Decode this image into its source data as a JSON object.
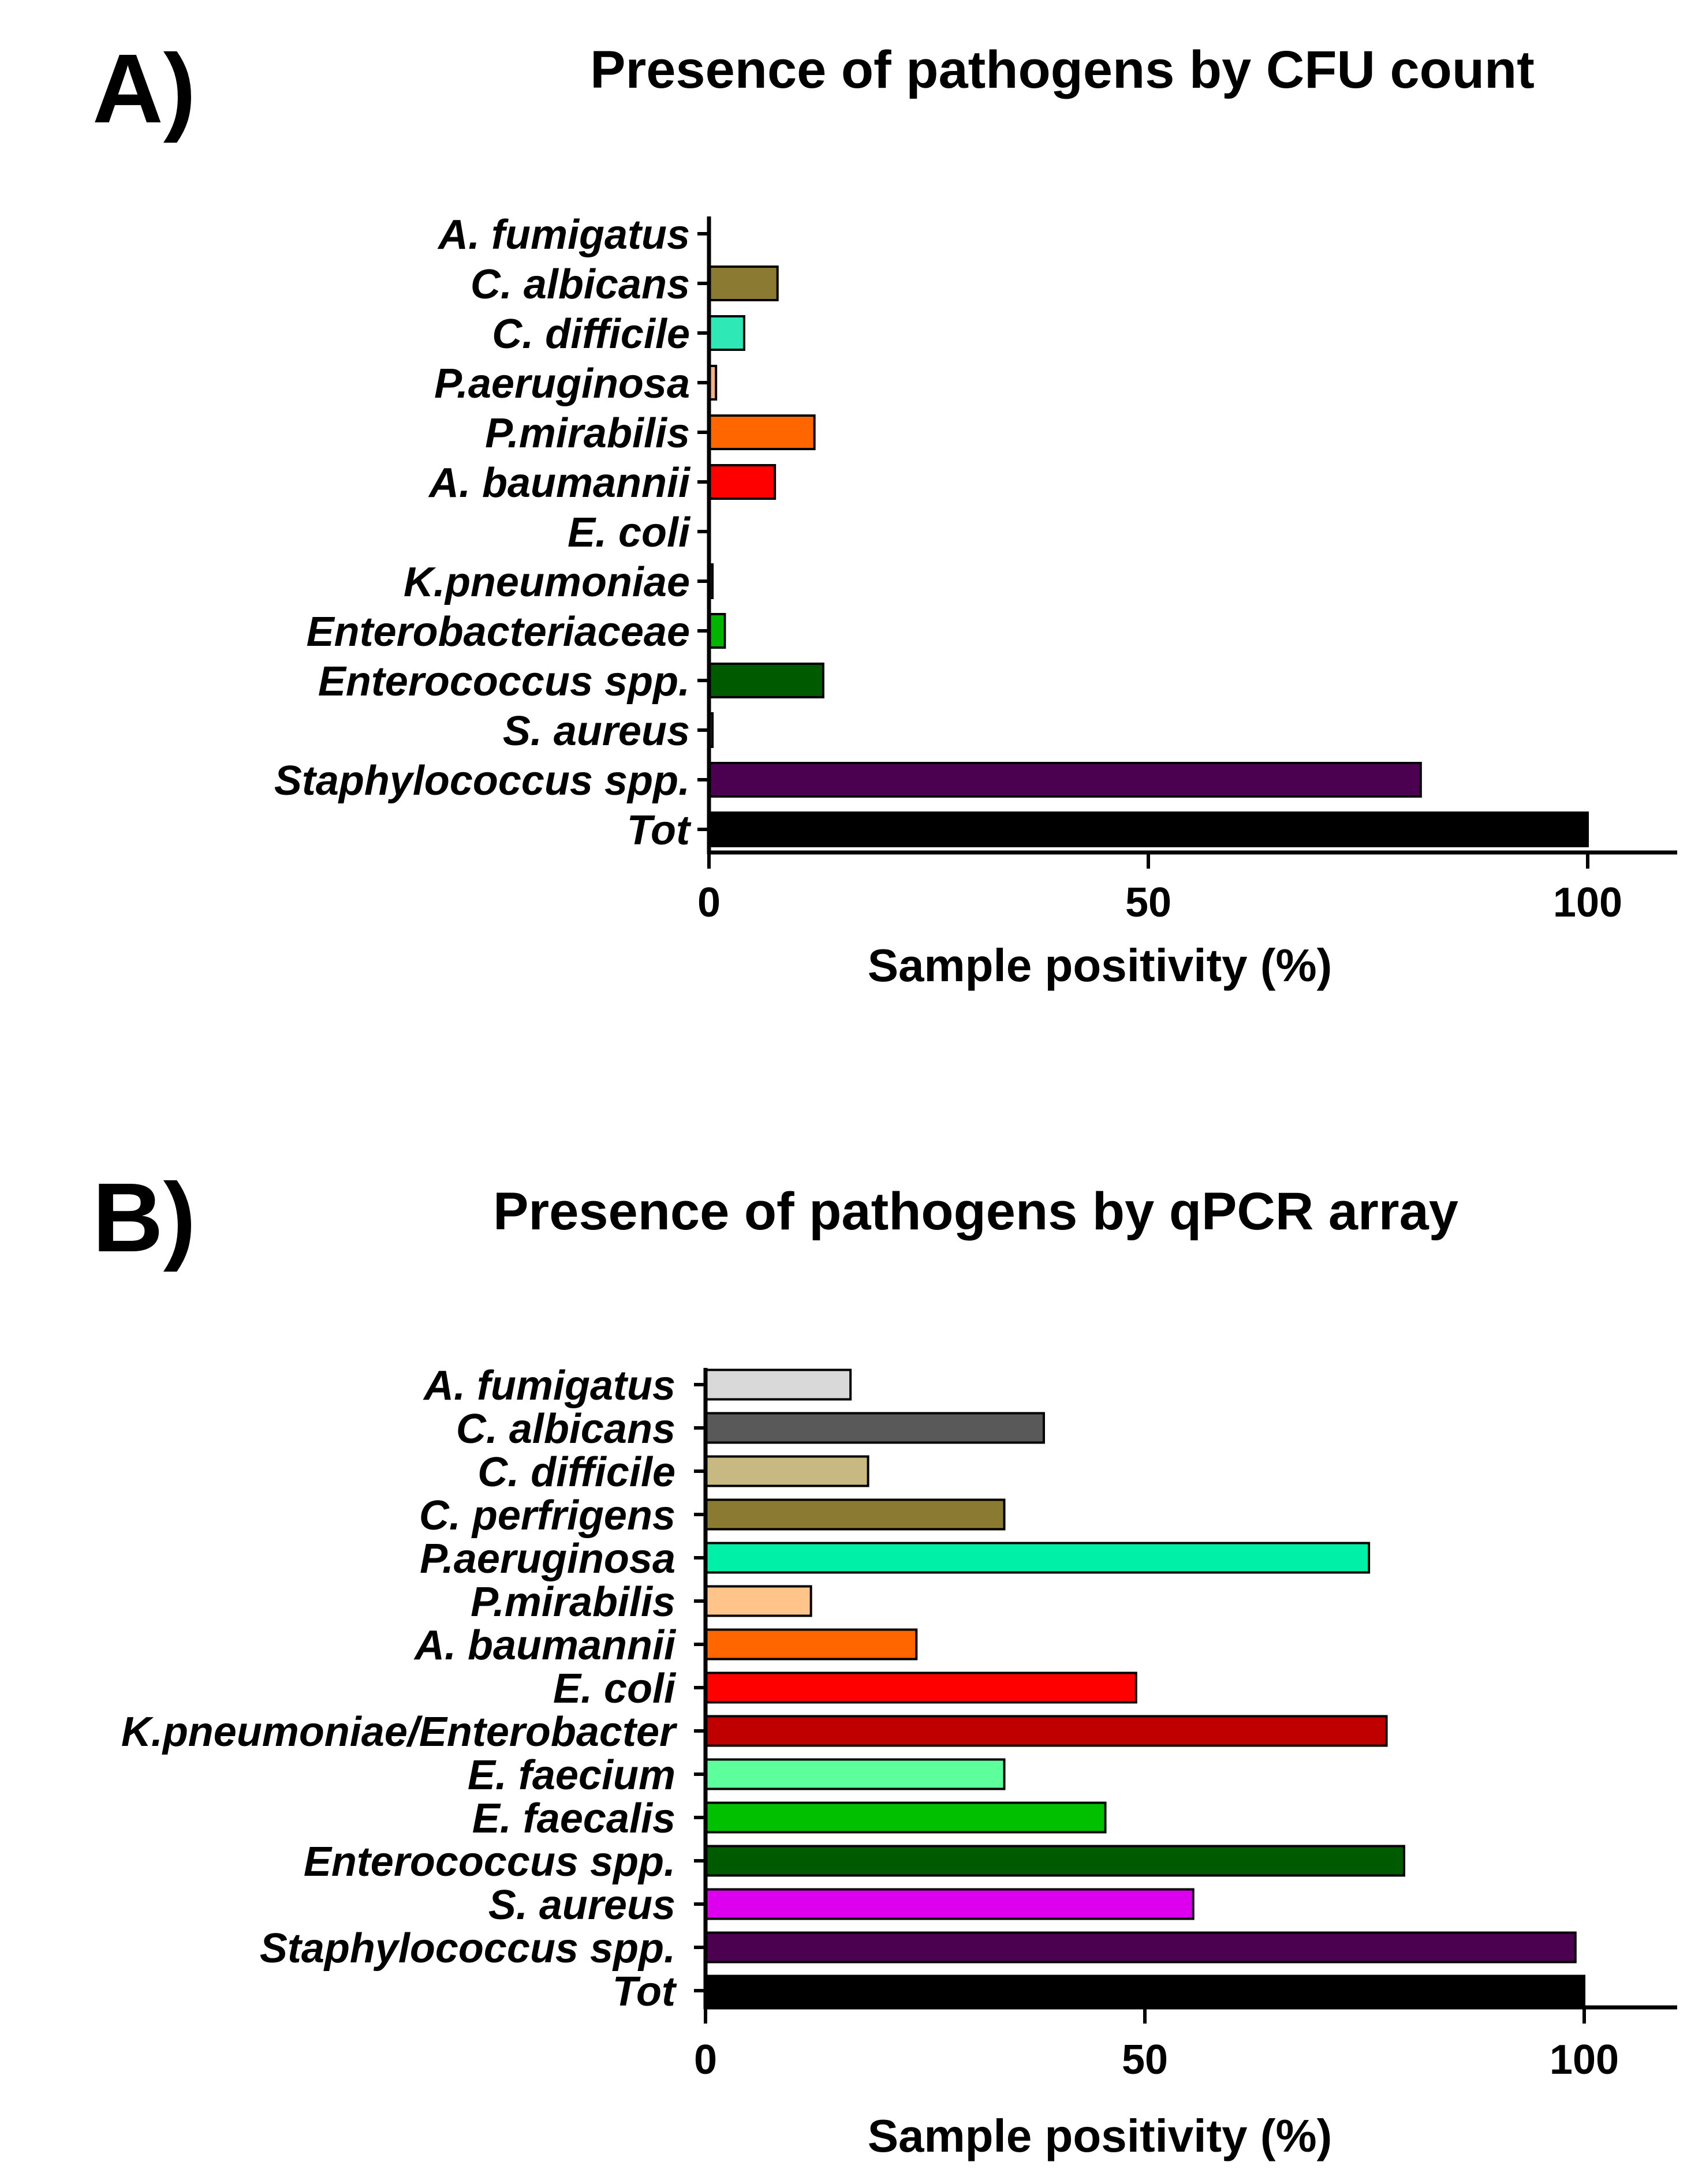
{
  "chart_data": [
    {
      "panel": "A)",
      "type": "bar",
      "orientation": "horizontal",
      "title": "Presence of pathogens by CFU count",
      "xlabel": "Sample positivity (%)",
      "ylabel": "",
      "xlim": [
        0,
        110
      ],
      "xticks": [
        "0",
        "50",
        "100"
      ],
      "categories": [
        "A. fumigatus",
        "C. albicans",
        "C. difficile",
        "P.aeruginosa",
        "P.mirabilis",
        "A. baumannii",
        "E. coli",
        "K.pneumoniae",
        "Enterobacteriaceae",
        "Enterococcus spp.",
        "S. aureus",
        "Staphylococcus spp.",
        "Tot"
      ],
      "values": [
        0,
        7.8,
        4.0,
        0.8,
        12.0,
        7.5,
        0,
        0.4,
        1.8,
        13.0,
        0.4,
        81.0,
        100
      ],
      "colors": [
        "#d9d9d9",
        "#8b7a32",
        "#2ee8b6",
        "#f4b183",
        "#ff6600",
        "#ff0000",
        "#ff0000",
        "#c00000",
        "#00b400",
        "#005a00",
        "#cc00ff",
        "#4b0050",
        "#000000"
      ]
    },
    {
      "panel": "B)",
      "type": "bar",
      "orientation": "horizontal",
      "title": "Presence of pathogens by qPCR array",
      "xlabel": "Sample positivity (%)",
      "ylabel": "",
      "xlim": [
        0,
        110
      ],
      "xticks": [
        "0",
        "50",
        "100"
      ],
      "categories": [
        "A. fumigatus",
        "C. albicans",
        "C. difficile",
        "C. perfrigens",
        "P.aeruginosa",
        "P.mirabilis",
        "A. baumannii",
        "E. coli",
        "K.pneumoniae/Enterobacter",
        "E. faecium",
        "E. faecalis",
        "Enterococcus spp.",
        "S. aureus",
        "Staphylococcus spp.",
        "Tot"
      ],
      "values": [
        16.5,
        38.5,
        18.5,
        34.0,
        75.5,
        12.0,
        24.0,
        49.0,
        77.5,
        34.0,
        45.5,
        79.5,
        55.5,
        99.0,
        100
      ],
      "colors": [
        "#d9d9d9",
        "#595959",
        "#c8b882",
        "#8b7a32",
        "#00f0a8",
        "#ffc48a",
        "#ff6600",
        "#ff0000",
        "#c00000",
        "#5cff9c",
        "#00c000",
        "#005a00",
        "#dd00ee",
        "#4b0050",
        "#000000"
      ]
    }
  ]
}
